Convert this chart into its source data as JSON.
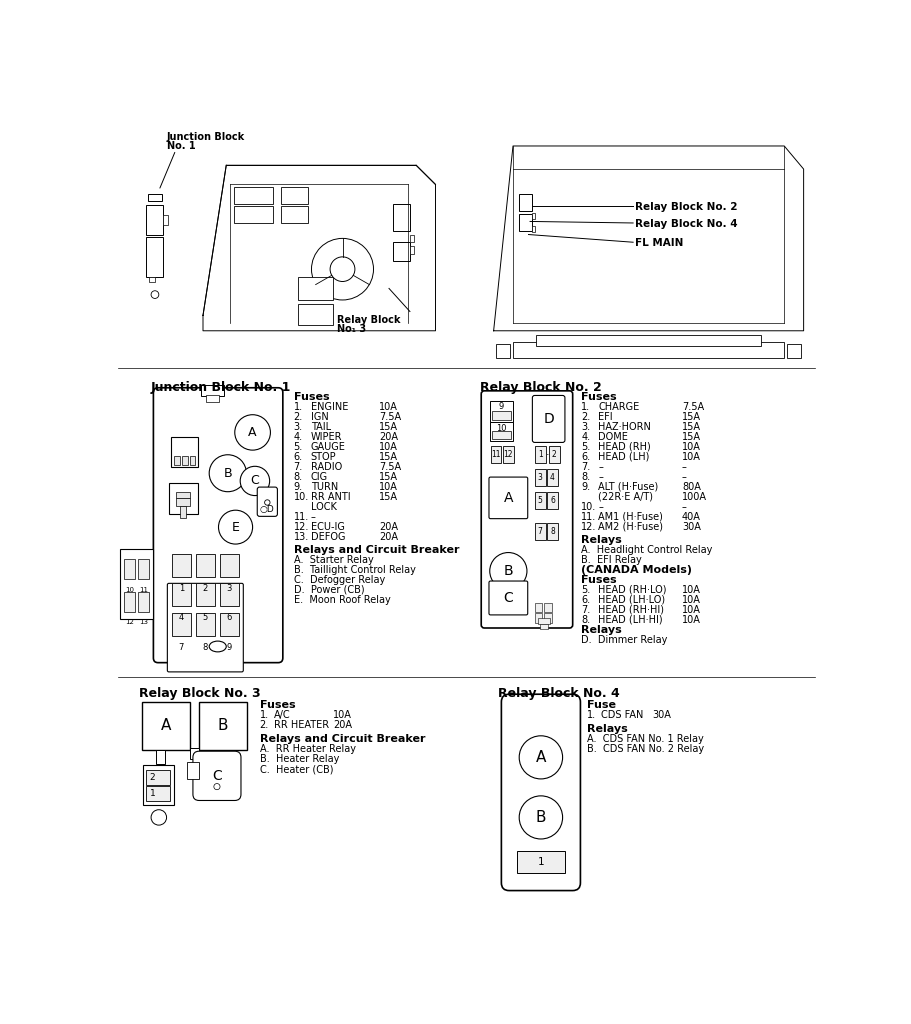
{
  "bg_color": "#ffffff",
  "jb1_fuses": [
    [
      "1.",
      "ENGINE",
      "10A"
    ],
    [
      "2.",
      "IGN",
      "7.5A"
    ],
    [
      "3.",
      "TAIL",
      "15A"
    ],
    [
      "4.",
      "WIPER",
      "20A"
    ],
    [
      "5.",
      "GAUGE",
      "10A"
    ],
    [
      "6.",
      "STOP",
      "15A"
    ],
    [
      "7.",
      "RADIO",
      "7.5A"
    ],
    [
      "8.",
      "CIG",
      "15A"
    ],
    [
      "9.",
      "TURN",
      "10A"
    ],
    [
      "10.",
      "RR ANTI",
      "15A"
    ],
    [
      "",
      "LOCK",
      ""
    ],
    [
      "11.",
      "–",
      ""
    ],
    [
      "12.",
      "ECU-IG",
      "20A"
    ],
    [
      "13.",
      "DEFOG",
      "20A"
    ]
  ],
  "jb1_relays": [
    "A.  Starter Relay",
    "B.  Taillight Control Relay",
    "C.  Defogger Relay",
    "D.  Power (CB)",
    "E.  Moon Roof Relay"
  ],
  "rb2_fuses": [
    [
      "1.",
      "CHARGE",
      "7.5A"
    ],
    [
      "2.",
      "EFI",
      "15A"
    ],
    [
      "3.",
      "HAZ·HORN",
      "15A"
    ],
    [
      "4.",
      "DOME",
      "15A"
    ],
    [
      "5.",
      "HEAD (RH)",
      "10A"
    ],
    [
      "6.",
      "HEAD (LH)",
      "10A"
    ],
    [
      "7.",
      "–",
      "–"
    ],
    [
      "8.",
      "–",
      "–"
    ],
    [
      "9.",
      "ALT (H·Fuse)",
      "80A"
    ],
    [
      "",
      "(22R·E A/T)",
      "100A"
    ],
    [
      "10.",
      "–",
      "–"
    ],
    [
      "11.",
      "AM1 (H·Fuse)",
      "40A"
    ],
    [
      "12.",
      "AM2 (H·Fuse)",
      "30A"
    ]
  ],
  "rb2_relays": [
    "A.  Headlight Control Relay",
    "B.  EFI Relay"
  ],
  "canada_fuses": [
    [
      "5.",
      "HEAD (RH·LO)",
      "10A"
    ],
    [
      "6.",
      "HEAD (LH·LO)",
      "10A"
    ],
    [
      "7.",
      "HEAD (RH·HI)",
      "10A"
    ],
    [
      "8.",
      "HEAD (LH·HI)",
      "10A"
    ]
  ],
  "rb3_fuses": [
    [
      "1.",
      "A/C",
      "10A"
    ],
    [
      "2.",
      "RR HEATER",
      "20A"
    ]
  ],
  "rb3_relays": [
    "A.  RR Heater Relay",
    "B.  Heater Relay",
    "C.  Heater (CB)"
  ],
  "rb4_fuses": [
    [
      "1.",
      "CDS FAN",
      "30A"
    ]
  ],
  "rb4_relays": [
    "A.  CDS FAN No. 1 Relay",
    "B.  CDS FAN No. 2 Relay"
  ]
}
